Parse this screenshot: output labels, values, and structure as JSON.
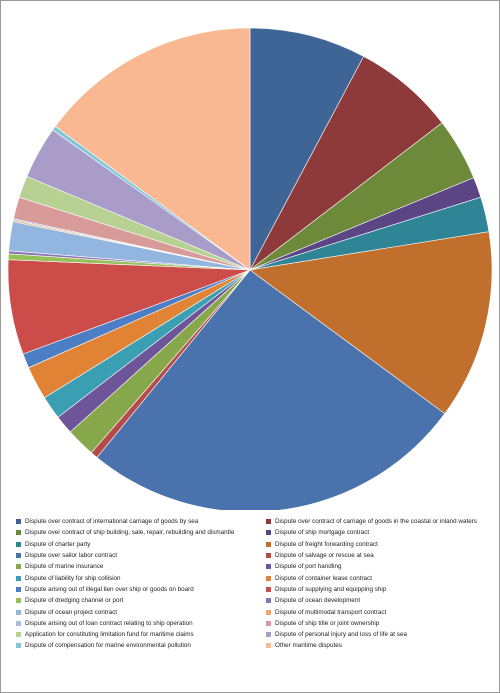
{
  "chart_data": {
    "type": "pie",
    "title": "",
    "series": [
      {
        "name": "Dispute over contract of international carriage of goods by sea",
        "value": 8.0,
        "color": "#3f6496"
      },
      {
        "name": "Dispute over contract of carriage of goods in the coastal or inland waters",
        "value": 7.0,
        "color": "#8e3a3a"
      },
      {
        "name": "Dispute over contract of ship building, sale, repair, rebuilding and dismantle",
        "value": 4.3,
        "color": "#6d8a3a"
      },
      {
        "name": "Dispute of ship mortgage contract",
        "value": 1.4,
        "color": "#5c4585"
      },
      {
        "name": "Dispute of charter party",
        "value": 2.4,
        "color": "#2f8596"
      },
      {
        "name": "Dispute of freight forwarding contract",
        "value": 13.0,
        "color": "#c06f2c"
      },
      {
        "name": "Dispute over sailor labor contract",
        "value": 26.5,
        "color": "#4a72ac"
      },
      {
        "name": "Dispute of salvage or rescue at sea",
        "value": 0.5,
        "color": "#b54a4a"
      },
      {
        "name": "Dispute of marine insurance",
        "value": 2.0,
        "color": "#86a84a"
      },
      {
        "name": "Dispute of port handling",
        "value": 1.3,
        "color": "#6e5499"
      },
      {
        "name": "Dispute of liability for ship collision",
        "value": 1.6,
        "color": "#3b9fb3"
      },
      {
        "name": "Dispute of container lease contract",
        "value": 2.3,
        "color": "#e18335"
      },
      {
        "name": "Dispute arising out of illegal lien over ship or goods on board",
        "value": 1.0,
        "color": "#4b7ec4"
      },
      {
        "name": "Dispute of supplying and equipping ship",
        "value": 6.5,
        "color": "#cc4c4a"
      },
      {
        "name": "Dispute of dredging channel or port",
        "value": 0.4,
        "color": "#97c05a"
      },
      {
        "name": "Dispute of ocean development",
        "value": 0.2,
        "color": "#8a72b3"
      },
      {
        "name": "Dispute of ocean project contract",
        "value": 2.0,
        "color": "#93b6e0"
      },
      {
        "name": "Dispute of multimodal transport contract",
        "value": 0.1,
        "color": "#f2a566"
      },
      {
        "name": "Dispute arising out of loan contract relating to ship operation",
        "value": 0.1,
        "color": "#a7bde0"
      },
      {
        "name": "Dispute of ship title or joint ownership",
        "value": 1.5,
        "color": "#d99a9a"
      },
      {
        "name": "Application for constituting limitation fund for maritime claims",
        "value": 1.5,
        "color": "#b6d191"
      },
      {
        "name": "Dispute of personal injury and loss of life at sea",
        "value": 3.6,
        "color": "#a99cc8"
      },
      {
        "name": "Dispute of compensation for marine environmental pollution",
        "value": 0.3,
        "color": "#7fc6d9"
      },
      {
        "name": "Other maritime disputes",
        "value": 15.3,
        "color": "#f9b892"
      }
    ]
  }
}
